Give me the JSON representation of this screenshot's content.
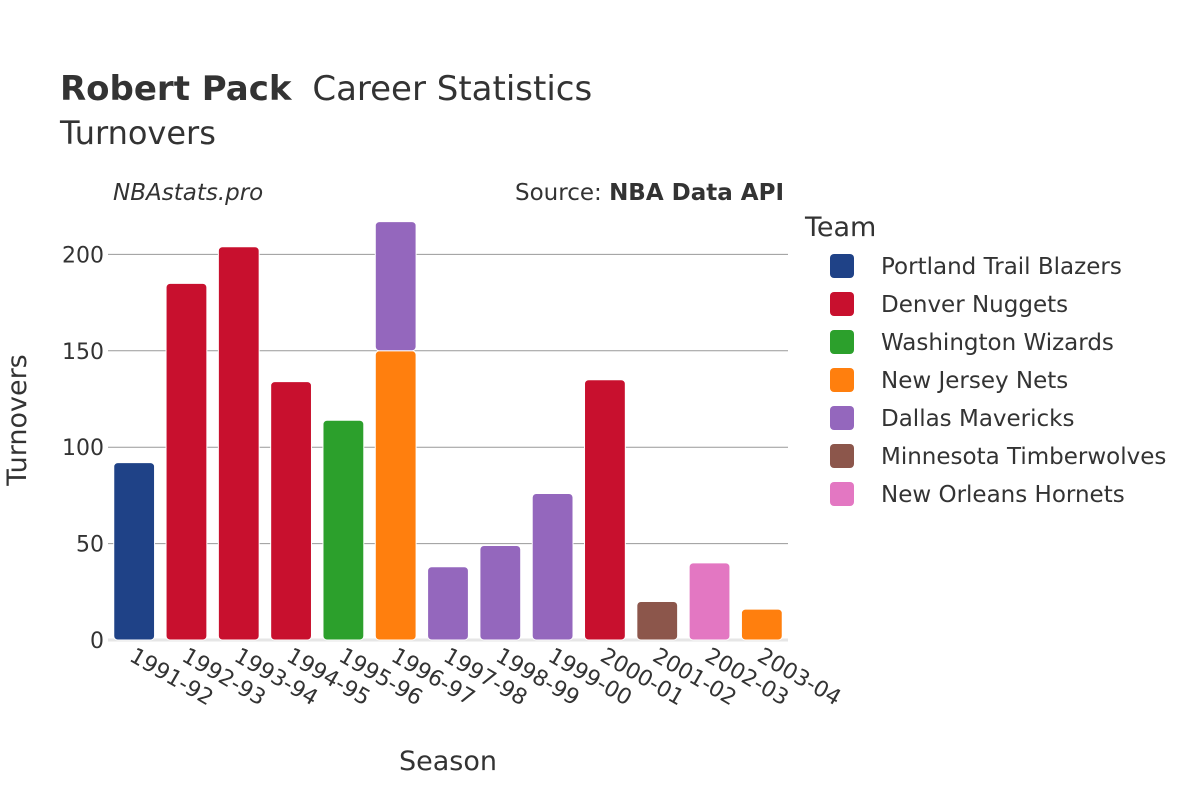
{
  "header": {
    "player_name": "Robert Pack",
    "title_rest": "Career Statistics",
    "subtitle": "Turnovers",
    "site_credit": "NBAstats.pro",
    "source_prefix": "Source: ",
    "source_name": "NBA Data API"
  },
  "legend": {
    "title": "Team"
  },
  "chart_data": {
    "type": "bar",
    "stacked": true,
    "xlabel": "Season",
    "ylabel": "Turnovers",
    "ylim": [
      0,
      222
    ],
    "yticks": [
      0,
      50,
      100,
      150,
      200
    ],
    "grid": true,
    "legend_position": "right",
    "categories": [
      "1991-92",
      "1992-93",
      "1993-94",
      "1994-95",
      "1995-96",
      "1996-97",
      "1997-98",
      "1998-99",
      "1999-00",
      "2000-01",
      "2001-02",
      "2002-03",
      "2003-04"
    ],
    "series": [
      {
        "name": "Portland Trail Blazers",
        "color": "#1f4287",
        "values": [
          92,
          0,
          0,
          0,
          0,
          0,
          0,
          0,
          0,
          0,
          0,
          0,
          0
        ]
      },
      {
        "name": "Denver Nuggets",
        "color": "#c8102e",
        "values": [
          0,
          185,
          204,
          134,
          0,
          0,
          0,
          0,
          0,
          135,
          0,
          0,
          0
        ]
      },
      {
        "name": "Washington Wizards",
        "color": "#2ca02c",
        "values": [
          0,
          0,
          0,
          0,
          114,
          0,
          0,
          0,
          0,
          0,
          0,
          0,
          0
        ]
      },
      {
        "name": "New Jersey Nets",
        "color": "#ff7f0e",
        "values": [
          0,
          0,
          0,
          0,
          0,
          150,
          0,
          0,
          0,
          0,
          0,
          0,
          16
        ]
      },
      {
        "name": "Dallas Mavericks",
        "color": "#9467bd",
        "values": [
          0,
          0,
          0,
          0,
          0,
          67,
          38,
          49,
          76,
          0,
          0,
          0,
          0
        ]
      },
      {
        "name": "Minnesota Timberwolves",
        "color": "#8c564b",
        "values": [
          0,
          0,
          0,
          0,
          0,
          0,
          0,
          0,
          0,
          0,
          20,
          0,
          0
        ]
      },
      {
        "name": "New Orleans Hornets",
        "color": "#e377c2",
        "values": [
          0,
          0,
          0,
          0,
          0,
          0,
          0,
          0,
          0,
          0,
          0,
          40,
          0
        ]
      }
    ]
  }
}
